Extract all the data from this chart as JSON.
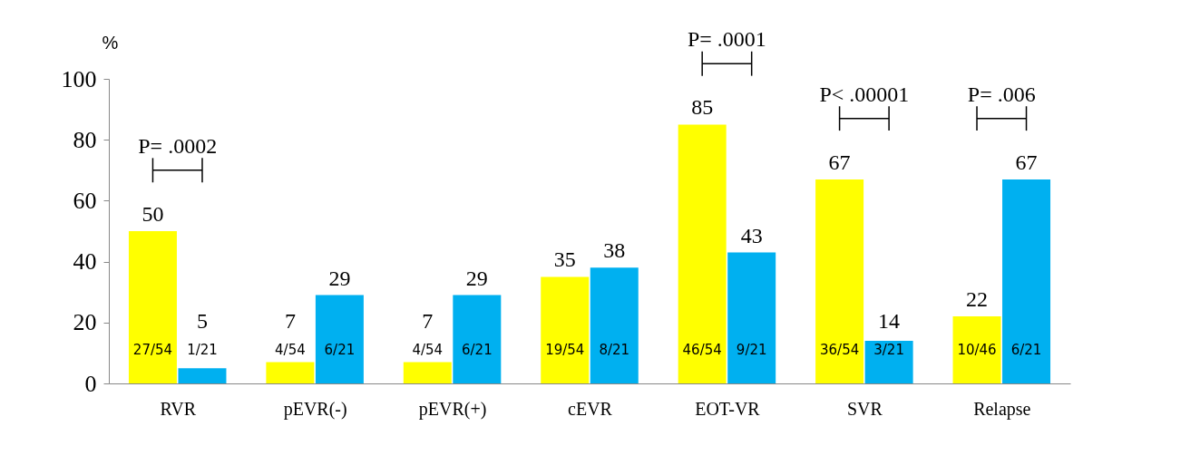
{
  "chart_data": {
    "type": "bar",
    "ylabel": "%",
    "categories": [
      "RVR",
      "pEVR(-)",
      "pEVR(+)",
      "cEVR",
      "EOT-VR",
      "SVR",
      "Relapse"
    ],
    "series": [
      {
        "color": "#ffff00",
        "values": [
          50,
          7,
          7,
          35,
          85,
          67,
          22
        ]
      },
      {
        "color": "#00b0f0",
        "values": [
          5,
          29,
          29,
          38,
          43,
          14,
          67
        ]
      }
    ],
    "ylim": [
      0,
      100
    ],
    "yticks": [
      0,
      20,
      40,
      60,
      80,
      100
    ],
    "data_labels": true,
    "grid": false,
    "legend": false,
    "annotations": [
      {
        "text": "27/54",
        "x": "RVR",
        "y": 11
      },
      {
        "text": "1/21",
        "x": "RVR",
        "y": 11
      },
      {
        "text": "4/54",
        "x": "pEVR(-)",
        "y": 11
      },
      {
        "text": "6/21",
        "x": "pEVR(-)",
        "y": 11
      },
      {
        "text": "4/54",
        "x": "pEVR(+)",
        "y": 11
      },
      {
        "text": "6/21",
        "x": "pEVR(+)",
        "y": 11
      },
      {
        "text": "19/54",
        "x": "cEVR",
        "y": 11
      },
      {
        "text": "8/21",
        "x": "cEVR",
        "y": 11
      },
      {
        "text": "46/54",
        "x": "EOT-VR",
        "y": 11
      },
      {
        "text": "9/21",
        "x": "EOT-VR",
        "y": 11
      },
      {
        "text": "36/54",
        "x": "SVR",
        "y": 11
      },
      {
        "text": "3/21",
        "x": "SVR",
        "y": 11
      },
      {
        "text": "10/46",
        "x": "Relapse",
        "y": 11
      },
      {
        "text": "6/21",
        "x": "Relapse",
        "y": 11
      },
      "P= .0002",
      "P= .0001",
      "P< .00001",
      "P= .006"
    ]
  }
}
